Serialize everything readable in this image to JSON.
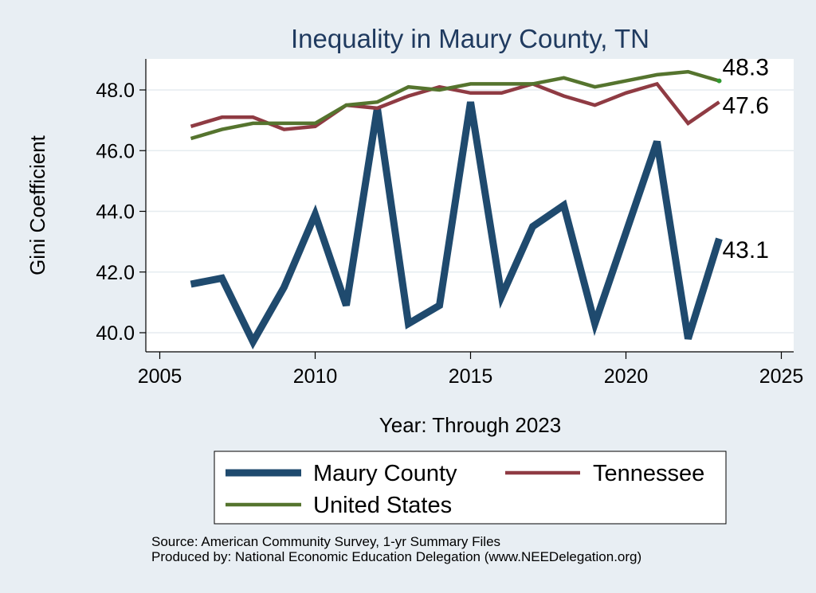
{
  "chart_data": {
    "type": "line",
    "title": "Inequality in Maury County, TN",
    "xlabel": "Year: Through 2023",
    "ylabel": "Gini Coefficient",
    "xlim": [
      2005,
      2025
    ],
    "ylim": [
      39.3,
      49.2
    ],
    "x_ticks": [
      2005,
      2010,
      2015,
      2020,
      2025
    ],
    "x_tick_labels": [
      "2005",
      "2010",
      "2015",
      "2020",
      "2025"
    ],
    "y_ticks": [
      40,
      42,
      44,
      46,
      48
    ],
    "y_tick_labels": [
      "40.0",
      "42.0",
      "44.0",
      "46.0",
      "48.0"
    ],
    "grid": true,
    "legend_position": "bottom",
    "x": [
      2006,
      2007,
      2008,
      2009,
      2010,
      2011,
      2012,
      2013,
      2014,
      2015,
      2016,
      2017,
      2018,
      2019,
      2020,
      2021,
      2022,
      2023
    ],
    "series": [
      {
        "name": "Maury County",
        "color": "#1f4a6e",
        "values": [
          41.6,
          41.8,
          39.7,
          41.5,
          43.9,
          40.9,
          47.4,
          40.3,
          40.9,
          47.6,
          41.2,
          43.5,
          44.2,
          40.3,
          43.3,
          46.3,
          39.8,
          43.1
        ]
      },
      {
        "name": "Tennessee",
        "color": "#8f3b43",
        "values": [
          46.8,
          47.1,
          47.1,
          46.7,
          46.8,
          47.5,
          47.4,
          47.8,
          48.1,
          47.9,
          47.9,
          48.2,
          47.8,
          47.5,
          47.9,
          48.2,
          46.9,
          47.6
        ]
      },
      {
        "name": "United States",
        "color": "#55742e",
        "values": [
          46.4,
          46.7,
          46.9,
          46.9,
          46.9,
          47.5,
          47.6,
          48.1,
          48.0,
          48.2,
          48.2,
          48.2,
          48.4,
          48.1,
          48.3,
          48.5,
          48.6,
          48.3
        ]
      }
    ],
    "end_labels": [
      {
        "series": "United States",
        "text": "48.3"
      },
      {
        "series": "Tennessee",
        "text": "47.6"
      },
      {
        "series": "Maury County",
        "text": "43.1"
      }
    ],
    "source_lines": [
      "Source: American Community Survey, 1-yr Summary Files",
      "Produced by: National Economic Education Delegation (www.NEEDelegation.org)"
    ]
  }
}
